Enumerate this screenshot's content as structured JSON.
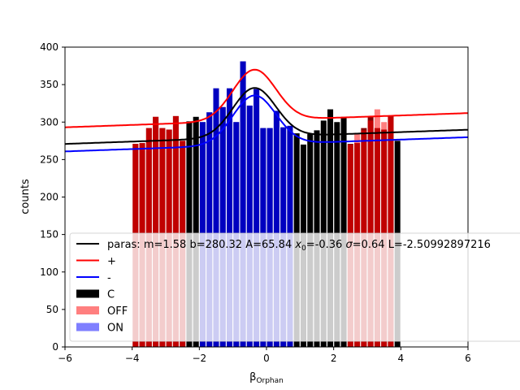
{
  "chart_data": {
    "type": "bar",
    "title": "",
    "xlabel_base": "β",
    "xlabel_sub": "Orphan",
    "ylabel": "counts",
    "xlim": [
      -6,
      6
    ],
    "ylim": [
      0,
      400
    ],
    "xticks": [
      -6,
      -4,
      -2,
      0,
      2,
      4,
      6
    ],
    "xtick_labels": [
      "−6",
      "−4",
      "−2",
      "0",
      "2",
      "4",
      "6"
    ],
    "yticks": [
      0,
      50,
      100,
      150,
      200,
      250,
      300,
      350,
      400
    ],
    "bin_width": 0.2,
    "bars": {
      "x": [
        -3.9,
        -3.7,
        -3.5,
        -3.3,
        -3.1,
        -2.9,
        -2.7,
        -2.5,
        -2.3,
        -2.1,
        -1.9,
        -1.7,
        -1.5,
        -1.3,
        -1.1,
        -0.9,
        -0.7,
        -0.5,
        -0.3,
        -0.1,
        0.1,
        0.3,
        0.5,
        0.7,
        0.9,
        1.1,
        1.3,
        1.5,
        1.7,
        1.9,
        2.1,
        2.3,
        2.5,
        2.7,
        2.9,
        3.1,
        3.3,
        3.5,
        3.7,
        3.9
      ],
      "C": [
        271,
        272,
        292,
        307,
        292,
        290,
        308,
        275,
        301,
        307,
        300,
        313,
        345,
        320,
        345,
        300,
        381,
        322,
        344,
        292,
        292,
        315,
        293,
        295,
        285,
        270,
        284,
        289,
        302,
        317,
        300,
        307,
        271,
        272,
        292,
        307,
        292,
        290,
        308,
        275
      ],
      "OFF": [
        271,
        272,
        292,
        307,
        292,
        290,
        308,
        275,
        0,
        0,
        0,
        0,
        0,
        0,
        0,
        0,
        0,
        0,
        0,
        0,
        0,
        0,
        0,
        0,
        0,
        0,
        0,
        0,
        0,
        0,
        0,
        0,
        270,
        284,
        289,
        302,
        317,
        300,
        307,
        0
      ],
      "ON": [
        0,
        0,
        0,
        0,
        0,
        0,
        0,
        0,
        0,
        0,
        300,
        313,
        345,
        320,
        345,
        300,
        381,
        322,
        344,
        292,
        292,
        315,
        293,
        295,
        0,
        0,
        0,
        0,
        0,
        0,
        0,
        0,
        0,
        0,
        0,
        0,
        0,
        0,
        0,
        0
      ]
    },
    "colors": {
      "C": "#000000",
      "OFF": "#ff0000",
      "ON": "#0000ff",
      "overlap_off": "#800000",
      "overlap_on": "#000080",
      "fit": "#000000",
      "plus": "#ff0000",
      "minus": "#0000ff"
    },
    "fit": {
      "m": 1.58,
      "b": 280.32,
      "A": 65.84,
      "x0": -0.36,
      "sigma": 0.64
    },
    "plus_curve": {
      "m": 1.58,
      "b": 302.5,
      "A": 68,
      "x0": -0.36,
      "sigma": 0.64
    },
    "minus_curve": {
      "m": 1.58,
      "b": 280.32,
      "A": 65.84,
      "x0": -0.36,
      "sigma": 0.64,
      "offset": -10
    },
    "legend": {
      "placement": "lower-left",
      "entries": [
        {
          "key": "fit",
          "type": "line",
          "parts": [
            "paras: m=1.58 b=280.32 A=65.84 ",
            "x",
            "0",
            "=-0.36 ",
            "σ",
            "=0.64 L=-2.50992897216"
          ]
        },
        {
          "key": "plus",
          "type": "line",
          "label": "+"
        },
        {
          "key": "minus",
          "type": "line",
          "label": "-"
        },
        {
          "key": "C",
          "type": "patch",
          "label": "C",
          "alpha": 1.0
        },
        {
          "key": "OFF",
          "type": "patch",
          "label": "OFF",
          "alpha": 0.5
        },
        {
          "key": "ON",
          "type": "patch",
          "label": "ON",
          "alpha": 0.5
        }
      ]
    }
  }
}
